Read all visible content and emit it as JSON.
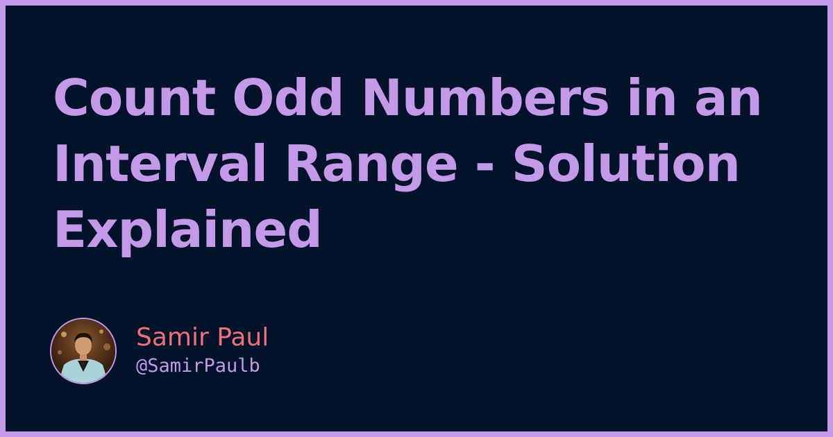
{
  "post": {
    "title": "Count Odd Numbers in an Interval Range - Solution Explained"
  },
  "author": {
    "name": "Samir Paul",
    "handle": "@SamirPaulb",
    "avatar_icon": "author-avatar-photo"
  },
  "colors": {
    "background": "#03132a",
    "frame": "#c49ae8",
    "title": "#c49ae8",
    "author_name": "#f07178",
    "author_handle": "#c49ae8"
  }
}
